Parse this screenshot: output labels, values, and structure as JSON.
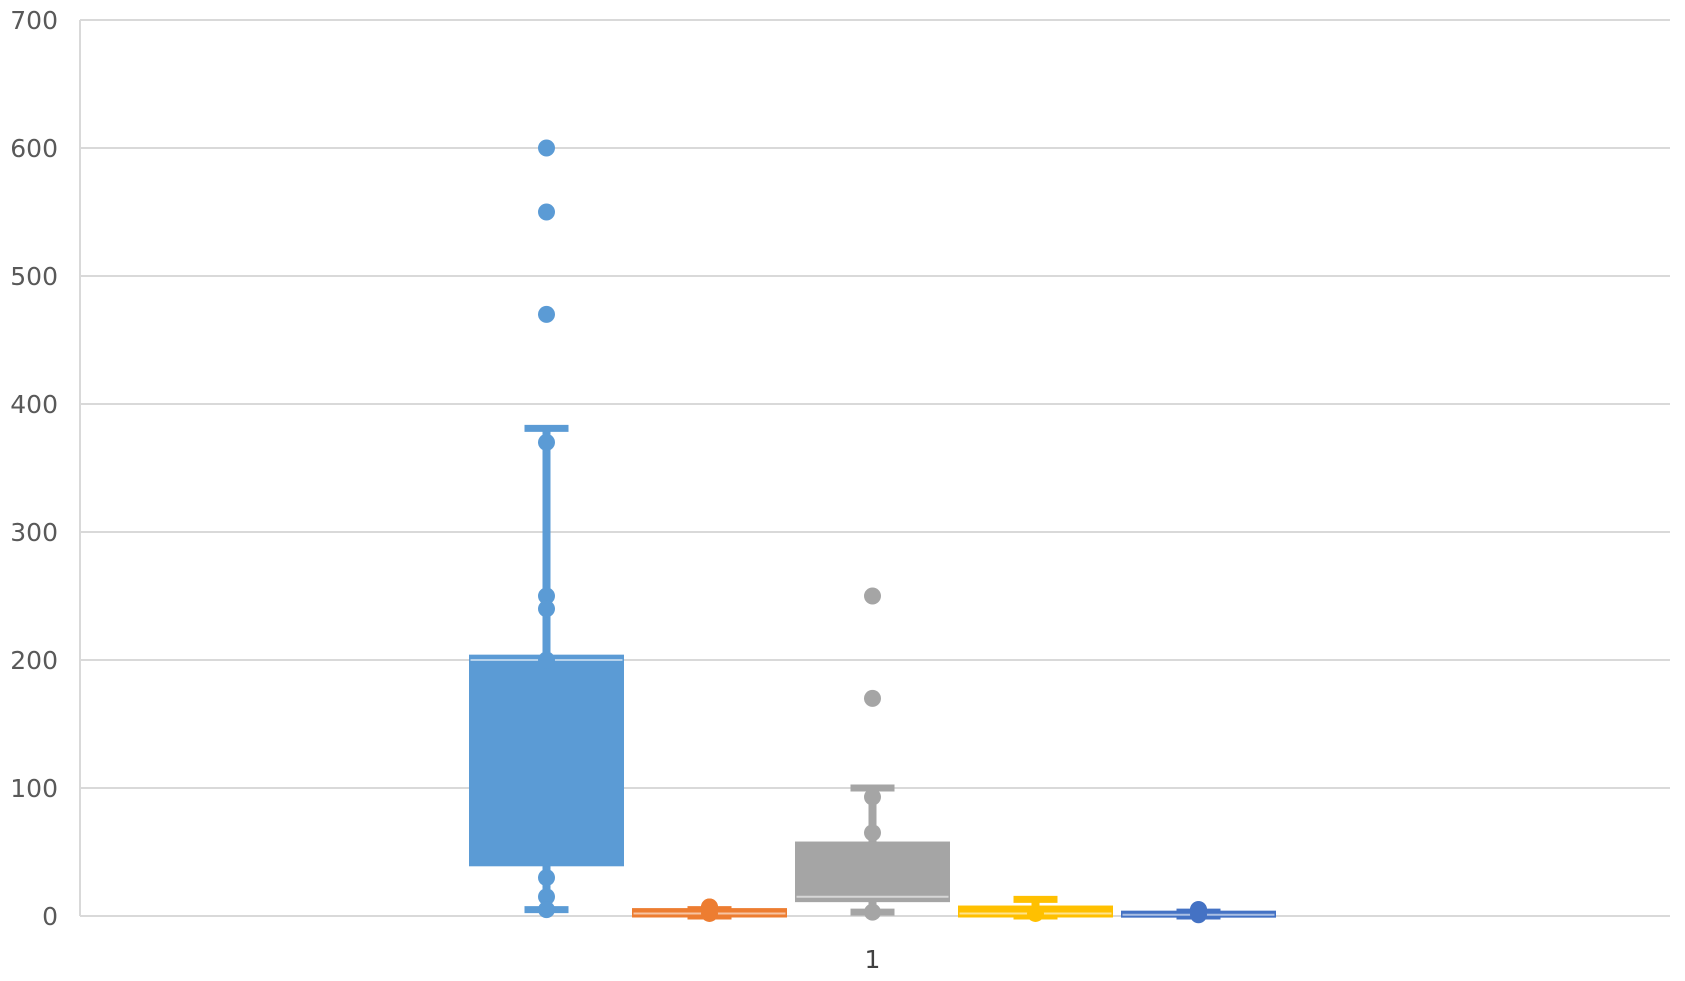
{
  "chart_data": {
    "type": "box",
    "categories": [
      "1"
    ],
    "xlabel": "",
    "ylabel": "",
    "ylim": [
      0,
      700
    ],
    "yticks": [
      0,
      100,
      200,
      300,
      400,
      500,
      600,
      700
    ],
    "grid": true,
    "legend": "none",
    "series": [
      {
        "color": "#5B9BD5",
        "min": 5,
        "q1": 40,
        "median": 200,
        "q3": 203,
        "max": 381,
        "points": [
          370,
          250,
          240,
          200,
          30,
          15,
          5
        ],
        "outliers": [
          600,
          550,
          470
        ]
      },
      {
        "color": "#ED7D31",
        "min": 0,
        "q1": 0,
        "median": 2,
        "q3": 5,
        "max": 5,
        "points": [
          7,
          7,
          2
        ],
        "outliers": []
      },
      {
        "color": "#A5A5A5",
        "min": 3,
        "q1": 12,
        "median": 15,
        "q3": 57,
        "max": 100,
        "points": [
          93,
          65,
          3
        ],
        "outliers": [
          250,
          170
        ]
      },
      {
        "color": "#FFC000",
        "min": 0,
        "q1": 0,
        "median": 2,
        "q3": 7,
        "max": 13,
        "points": [
          2
        ],
        "outliers": []
      },
      {
        "color": "#4472C4",
        "min": 0,
        "q1": 0,
        "median": 1,
        "q3": 3,
        "max": 3,
        "points": [
          5,
          5,
          1
        ],
        "outliers": []
      }
    ]
  }
}
